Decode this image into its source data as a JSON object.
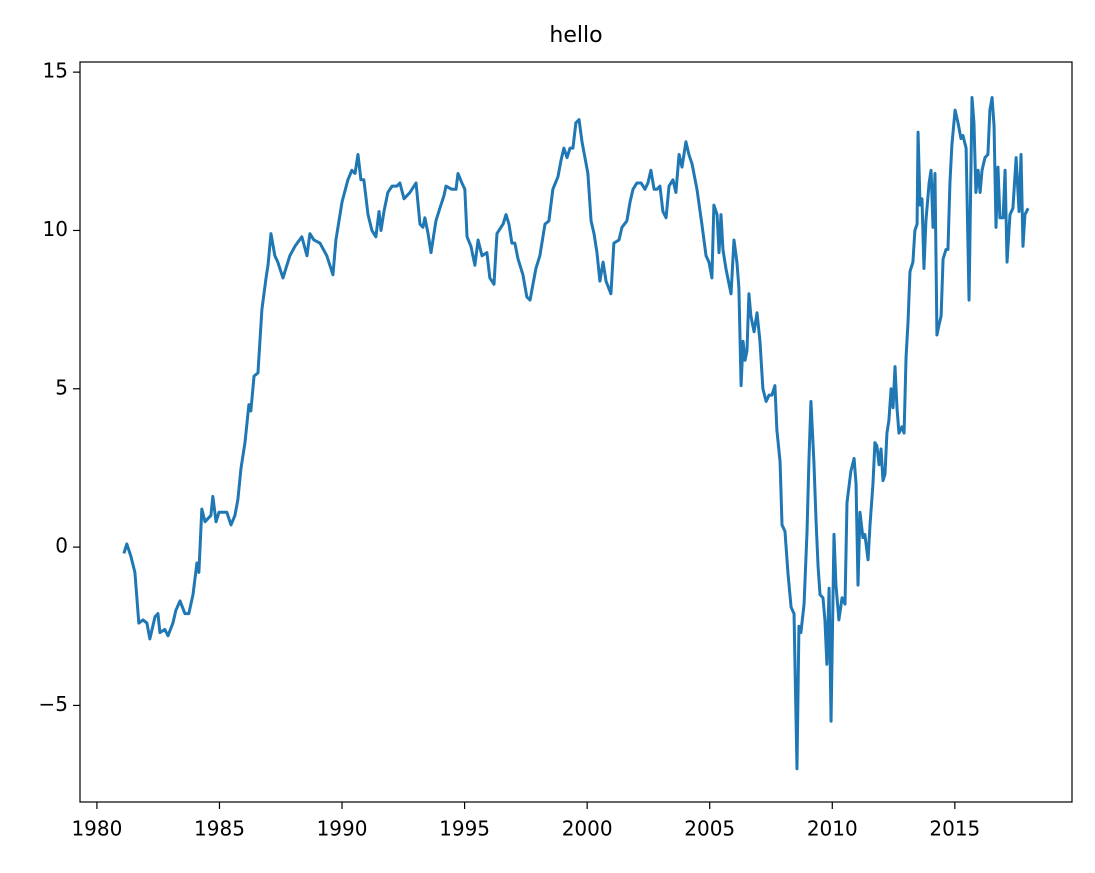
{
  "chart_data": {
    "type": "line",
    "title": "hello",
    "x": [
      1981.1,
      1981.22,
      1981.39,
      1981.55,
      1981.71,
      1981.88,
      1982.04,
      1982.16,
      1982.37,
      1982.49,
      1982.57,
      1982.77,
      1982.9,
      1983.1,
      1983.22,
      1983.39,
      1983.59,
      1983.75,
      1983.92,
      1984.08,
      1984.16,
      1984.28,
      1984.41,
      1984.65,
      1984.73,
      1984.86,
      1984.98,
      1985.3,
      1985.47,
      1985.63,
      1985.75,
      1985.88,
      1986.04,
      1986.2,
      1986.28,
      1986.41,
      1986.57,
      1986.73,
      1986.9,
      1986.98,
      1987.1,
      1987.26,
      1987.38,
      1987.59,
      1987.87,
      1988.08,
      1988.36,
      1988.57,
      1988.69,
      1988.85,
      1989.1,
      1989.38,
      1989.63,
      1989.75,
      1990.0,
      1990.24,
      1990.4,
      1990.53,
      1990.65,
      1990.77,
      1990.89,
      1991.06,
      1991.22,
      1991.38,
      1991.51,
      1991.59,
      1991.71,
      1991.87,
      1992.04,
      1992.24,
      1992.36,
      1992.53,
      1992.77,
      1993.02,
      1993.18,
      1993.3,
      1993.38,
      1993.51,
      1993.63,
      1993.83,
      1993.99,
      1994.16,
      1994.24,
      1994.48,
      1994.65,
      1994.73,
      1994.89,
      1995.01,
      1995.1,
      1995.26,
      1995.42,
      1995.55,
      1995.71,
      1995.91,
      1996.03,
      1996.2,
      1996.32,
      1996.57,
      1996.69,
      1996.81,
      1996.93,
      1997.05,
      1997.18,
      1997.38,
      1997.54,
      1997.67,
      1997.79,
      1997.91,
      1998.07,
      1998.28,
      1998.44,
      1998.6,
      1998.81,
      1998.93,
      1999.05,
      1999.18,
      1999.3,
      1999.42,
      1999.54,
      1999.67,
      1999.79,
      1999.91,
      2000.03,
      2000.16,
      2000.28,
      2000.4,
      2000.52,
      2000.65,
      2000.77,
      2000.97,
      2001.09,
      2001.3,
      2001.42,
      2001.62,
      2001.75,
      2001.87,
      2002.03,
      2002.2,
      2002.36,
      2002.48,
      2002.6,
      2002.73,
      2002.85,
      2002.97,
      2003.09,
      2003.22,
      2003.34,
      2003.5,
      2003.62,
      2003.75,
      2003.87,
      2004.03,
      2004.15,
      2004.28,
      2004.48,
      2004.68,
      2004.85,
      2004.97,
      2005.09,
      2005.17,
      2005.3,
      2005.38,
      2005.46,
      2005.54,
      2005.66,
      2005.79,
      2005.87,
      2005.99,
      2006.11,
      2006.19,
      2006.28,
      2006.36,
      2006.44,
      2006.52,
      2006.6,
      2006.68,
      2006.81,
      2006.93,
      2007.05,
      2007.17,
      2007.3,
      2007.42,
      2007.54,
      2007.66,
      2007.74,
      2007.87,
      2007.95,
      2008.07,
      2008.19,
      2008.32,
      2008.44,
      2008.56,
      2008.64,
      2008.72,
      2008.85,
      2008.97,
      2009.05,
      2009.13,
      2009.25,
      2009.34,
      2009.42,
      2009.5,
      2009.62,
      2009.7,
      2009.78,
      2009.87,
      2009.95,
      2010.07,
      2010.15,
      2010.27,
      2010.4,
      2010.52,
      2010.6,
      2010.76,
      2010.89,
      2010.97,
      2011.05,
      2011.13,
      2011.25,
      2011.33,
      2011.46,
      2011.54,
      2011.66,
      2011.74,
      2011.82,
      2011.91,
      2011.99,
      2012.07,
      2012.15,
      2012.23,
      2012.31,
      2012.4,
      2012.48,
      2012.56,
      2012.64,
      2012.72,
      2012.84,
      2012.93,
      2013.01,
      2013.09,
      2013.17,
      2013.29,
      2013.37,
      2013.46,
      2013.5,
      2013.58,
      2013.66,
      2013.74,
      2013.82,
      2013.95,
      2014.03,
      2014.11,
      2014.19,
      2014.27,
      2014.35,
      2014.44,
      2014.52,
      2014.64,
      2014.72,
      2014.8,
      2014.88,
      2015.01,
      2015.13,
      2015.25,
      2015.33,
      2015.46,
      2015.58,
      2015.7,
      2015.78,
      2015.86,
      2015.95,
      2016.03,
      2016.11,
      2016.23,
      2016.35,
      2016.43,
      2016.52,
      2016.6,
      2016.68,
      2016.76,
      2016.84,
      2016.97,
      2017.05,
      2017.13,
      2017.25,
      2017.37,
      2017.5,
      2017.62,
      2017.7,
      2017.78,
      2017.86,
      2017.99
    ],
    "series": [
      {
        "color": "#1f77b4",
        "values": [
          -0.2,
          0.1,
          -0.3,
          -0.8,
          -2.4,
          -2.3,
          -2.4,
          -2.9,
          -2.2,
          -2.1,
          -2.7,
          -2.6,
          -2.8,
          -2.4,
          -2.0,
          -1.7,
          -2.1,
          -2.1,
          -1.5,
          -0.5,
          -0.8,
          1.2,
          0.8,
          1.0,
          1.6,
          0.8,
          1.1,
          1.1,
          0.7,
          1.0,
          1.5,
          2.5,
          3.3,
          4.5,
          4.3,
          5.4,
          5.5,
          7.5,
          8.5,
          8.9,
          9.9,
          9.2,
          9.0,
          8.5,
          9.2,
          9.5,
          9.8,
          9.2,
          9.9,
          9.7,
          9.6,
          9.2,
          8.6,
          9.7,
          10.9,
          11.6,
          11.9,
          11.8,
          12.4,
          11.6,
          11.6,
          10.5,
          10.0,
          9.8,
          10.6,
          10.0,
          10.6,
          11.2,
          11.4,
          11.4,
          11.5,
          11.0,
          11.2,
          11.5,
          10.2,
          10.1,
          10.4,
          9.9,
          9.3,
          10.3,
          10.7,
          11.1,
          11.4,
          11.3,
          11.3,
          11.8,
          11.5,
          11.3,
          9.8,
          9.5,
          8.9,
          9.7,
          9.2,
          9.3,
          8.5,
          8.3,
          9.9,
          10.2,
          10.5,
          10.2,
          9.6,
          9.6,
          9.1,
          8.6,
          7.9,
          7.8,
          8.3,
          8.8,
          9.2,
          10.2,
          10.3,
          11.3,
          11.7,
          12.2,
          12.6,
          12.3,
          12.6,
          12.6,
          13.4,
          13.5,
          12.8,
          12.3,
          11.8,
          10.3,
          9.9,
          9.3,
          8.4,
          9.0,
          8.4,
          8.0,
          9.6,
          9.7,
          10.1,
          10.3,
          10.9,
          11.3,
          11.5,
          11.5,
          11.3,
          11.5,
          11.9,
          11.3,
          11.3,
          11.4,
          10.6,
          10.4,
          11.4,
          11.6,
          11.2,
          12.4,
          12.0,
          12.8,
          12.4,
          12.1,
          11.3,
          10.2,
          9.2,
          9.0,
          8.5,
          10.8,
          10.5,
          9.3,
          10.5,
          9.4,
          8.8,
          8.3,
          8.0,
          9.7,
          9.0,
          8.2,
          5.1,
          6.5,
          5.9,
          6.2,
          8.0,
          7.3,
          6.8,
          7.4,
          6.5,
          5.0,
          4.6,
          4.8,
          4.8,
          5.1,
          3.7,
          2.7,
          0.7,
          0.5,
          -0.8,
          -1.9,
          -2.1,
          -7.0,
          -2.5,
          -2.7,
          -1.8,
          0.5,
          2.8,
          4.6,
          2.7,
          0.8,
          -0.6,
          -1.5,
          -1.6,
          -2.3,
          -3.7,
          -1.3,
          -5.5,
          0.4,
          -1.2,
          -2.3,
          -1.6,
          -1.8,
          1.4,
          2.4,
          2.8,
          2.0,
          -1.2,
          1.1,
          0.3,
          0.4,
          -0.4,
          0.7,
          2.0,
          3.3,
          3.2,
          2.6,
          3.1,
          2.1,
          2.3,
          3.6,
          4.0,
          5.0,
          4.4,
          5.7,
          4.4,
          3.6,
          3.8,
          3.6,
          6.0,
          7.1,
          8.7,
          9.0,
          10.0,
          10.2,
          13.1,
          10.8,
          11.0,
          8.8,
          10.3,
          11.5,
          11.9,
          10.1,
          11.8,
          6.7,
          7.0,
          7.3,
          9.1,
          9.4,
          9.4,
          11.5,
          12.7,
          13.8,
          13.4,
          12.9,
          13.0,
          12.6,
          7.8,
          14.2,
          13.4,
          11.2,
          11.9,
          11.2,
          11.9,
          12.3,
          12.4,
          13.8,
          14.2,
          13.3,
          10.1,
          12.0,
          10.4,
          10.4,
          11.9,
          9.0,
          10.5,
          10.7,
          12.3,
          10.6,
          12.4,
          9.5,
          10.5,
          10.7
        ]
      }
    ],
    "xlim": [
      1979.31,
      2019.78
    ],
    "xticks": [
      1980,
      1985,
      1990,
      1995,
      2000,
      2005,
      2010,
      2015
    ],
    "ylim": [
      -8.05,
      15.32
    ],
    "yticks": [
      {
        "value": -5,
        "label": "−5"
      },
      0,
      5,
      10,
      15
    ]
  }
}
